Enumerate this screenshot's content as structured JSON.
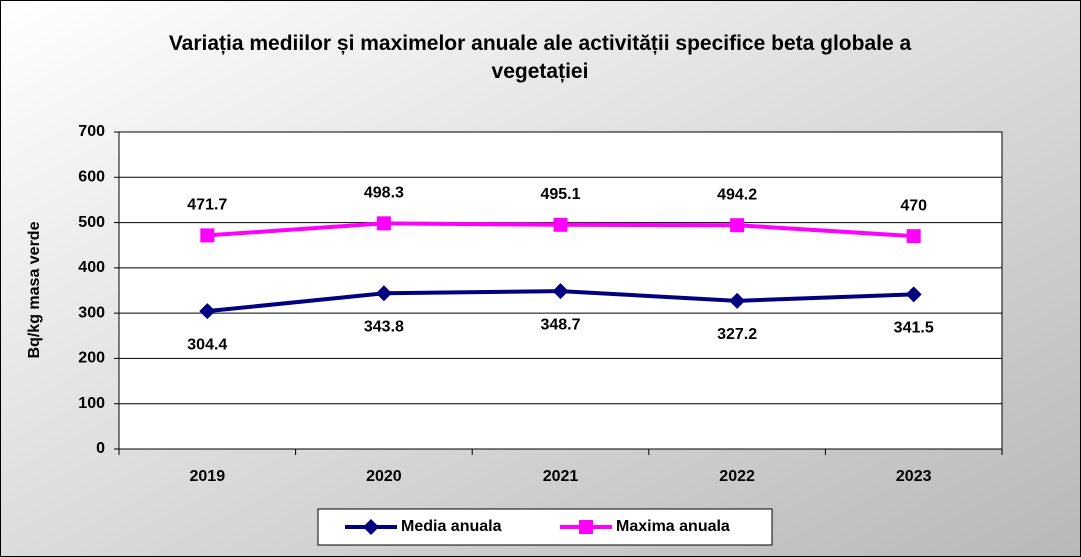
{
  "chart_data": {
    "type": "line",
    "title": "Variația mediilor și maximelor anuale ale activității specifice beta globale a vegetației",
    "y_label": "Bq/kg masa verde",
    "categories": [
      "2019",
      "2020",
      "2021",
      "2022",
      "2023"
    ],
    "series": [
      {
        "name": "Media anuala",
        "color": "#000080",
        "marker": "diamond",
        "values": [
          304.4,
          343.8,
          348.7,
          327.2,
          341.5
        ]
      },
      {
        "name": "Maxima anuala",
        "color": "#ff00ff",
        "marker": "square",
        "values": [
          471.7,
          498.3,
          495.1,
          494.2,
          470
        ]
      }
    ],
    "ylim": [
      0,
      700
    ],
    "yticks": [
      0,
      100,
      200,
      300,
      400,
      500,
      600,
      700
    ],
    "grid": true,
    "legend": "bottom"
  }
}
